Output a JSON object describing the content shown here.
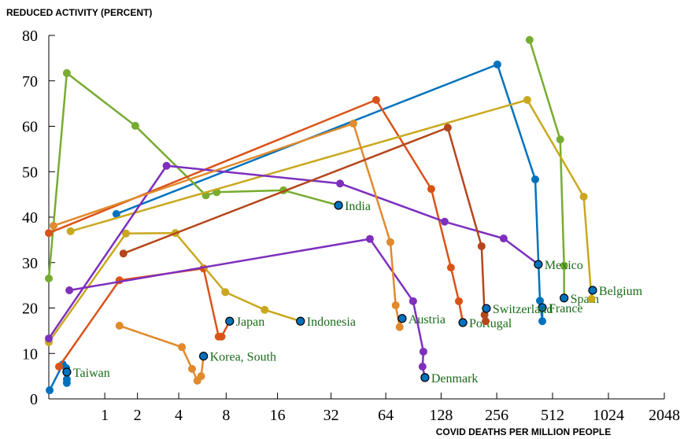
{
  "chart_data": {
    "type": "line",
    "ylabel": "REDUCED ACTIVITY (PERCENT)",
    "xlabel": "COVID DEATHS PER MILLION PEOPLE",
    "x_scale": "log2(1+x)",
    "xlim": [
      0,
      2048
    ],
    "xticks": [
      1,
      2,
      4,
      8,
      16,
      32,
      64,
      128,
      256,
      512,
      1024,
      2048
    ],
    "ylim": [
      0,
      80
    ],
    "yticks": [
      0,
      10,
      20,
      30,
      40,
      50,
      60,
      70,
      80
    ],
    "end_marker_color": "#0072bd",
    "label_color": "#1a6b1a",
    "series": [
      {
        "name": "Taiwan",
        "color": "#0072bd",
        "x": [
          0.01,
          0.19,
          0.24,
          0.25,
          0.25,
          0.25
        ],
        "values": [
          1.9,
          7.6,
          6.8,
          4.3,
          3.5,
          5.9
        ]
      },
      {
        "name": "France",
        "color": "#0072bd",
        "x": [
          1.31,
          258,
          413,
          438,
          451,
          451
        ],
        "values": [
          40.7,
          73.6,
          48.3,
          21.6,
          17.1,
          20.1
        ]
      },
      {
        "name": "India",
        "color": "#77ac30",
        "x": [
          0,
          0.25,
          1.92,
          6.0,
          7.0,
          17.3,
          35.2
        ],
        "values": [
          26.5,
          71.7,
          60.1,
          44.8,
          45.5,
          45.9,
          42.6
        ]
      },
      {
        "name": "Spain",
        "color": "#77ac30",
        "x": [
          385,
          563,
          591,
          591
        ],
        "values": [
          79.0,
          57.1,
          29.3,
          22.2
        ]
      },
      {
        "name": "Portugal",
        "color": "#d95319",
        "x": [
          0,
          56.7,
          113.2,
          144.7,
          159.8,
          167.9
        ],
        "values": [
          36.5,
          65.8,
          46.2,
          28.9,
          21.5,
          16.8
        ]
      },
      {
        "name": "Japan",
        "color": "#d95319",
        "x": [
          0.135,
          1.4,
          5.8,
          7.2,
          7.5,
          8.4
        ],
        "values": [
          7.1,
          26.1,
          28.7,
          13.7,
          13.7,
          17.1
        ]
      },
      {
        "name": "Indonesia",
        "color": "#c9a81e",
        "x": [
          0,
          1.6,
          3.8,
          7.9,
          13.5,
          21.6
        ],
        "values": [
          12.5,
          36.4,
          36.5,
          23.5,
          19.6,
          17.1
        ]
      },
      {
        "name": "Belgium",
        "color": "#c9a81e",
        "x": [
          0.31,
          374,
          754,
          831,
          842
        ],
        "values": [
          36.9,
          65.8,
          44.5,
          22.0,
          23.9
        ]
      },
      {
        "name": "Mexico",
        "color": "#7e2fbe",
        "x": [
          0,
          3.3,
          35.9,
          133.8,
          279,
          429
        ],
        "values": [
          13.3,
          51.3,
          47.4,
          39.0,
          35.3,
          29.6
        ]
      },
      {
        "name": "Denmark",
        "color": "#7e2fbe",
        "x": [
          0.29,
          52.4,
          90.2,
          102.6,
          101.5,
          104.6
        ],
        "values": [
          23.9,
          35.2,
          21.5,
          10.4,
          7.1,
          4.7
        ]
      },
      {
        "name": "Austria",
        "color": "#e08a2c",
        "x": [
          0.06,
          42.5,
          67.8,
          72.5,
          76.2,
          78.6
        ],
        "values": [
          38.1,
          60.6,
          34.5,
          20.6,
          15.8,
          17.7
        ]
      },
      {
        "name": "Korea, South",
        "color": "#e08a2c",
        "x": [
          1.4,
          4.2,
          4.9,
          5.3,
          5.6,
          5.8
        ],
        "values": [
          16.1,
          11.4,
          6.6,
          4.0,
          5.0,
          9.4
        ]
      },
      {
        "name": "Switzerland",
        "color": "#b5461b",
        "x": [
          1.52,
          139.1,
          212,
          220,
          223,
          225
        ],
        "values": [
          32.0,
          59.7,
          33.6,
          18.5,
          17.1,
          19.9
        ]
      }
    ]
  }
}
